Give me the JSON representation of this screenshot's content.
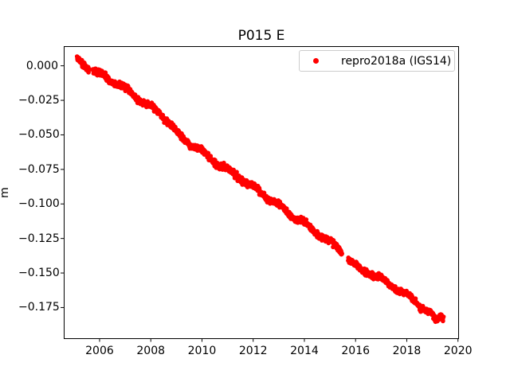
{
  "figure": {
    "background": "#ffffff"
  },
  "chart_data": {
    "type": "scatter",
    "title": "P015 E",
    "xlabel": "",
    "ylabel": "m",
    "grid": false,
    "xlim": [
      2004.6,
      2020.04
    ],
    "ylim": [
      -0.1975,
      0.0145
    ],
    "xticks": [
      {
        "label": "2006",
        "value": 2006
      },
      {
        "label": "2008",
        "value": 2008
      },
      {
        "label": "2010",
        "value": 2010
      },
      {
        "label": "2012",
        "value": 2012
      },
      {
        "label": "2014",
        "value": 2014
      },
      {
        "label": "2016",
        "value": 2016
      },
      {
        "label": "2018",
        "value": 2018
      },
      {
        "label": "2020",
        "value": 2020
      }
    ],
    "yticks": [
      {
        "label": "0.000",
        "value": 0.0
      },
      {
        "label": "−0.025",
        "value": -0.025
      },
      {
        "label": "−0.050",
        "value": -0.05
      },
      {
        "label": "−0.075",
        "value": -0.075
      },
      {
        "label": "−0.100",
        "value": -0.1
      },
      {
        "label": "−0.125",
        "value": -0.125
      },
      {
        "label": "−0.150",
        "value": -0.15
      },
      {
        "label": "−0.175",
        "value": -0.175
      }
    ],
    "legend": {
      "position": "upper right",
      "entries": [
        {
          "label": "repro2018a (IGS14)",
          "marker": "dot",
          "color": "#ff0000"
        }
      ]
    },
    "series": [
      {
        "name": "repro2018a (IGS14)",
        "color": "#ff0000",
        "marker": "dot",
        "marker_radius_px": 2.8,
        "sample_interval_years": 0.0069,
        "noise_sd_m": 0.001,
        "seasonal_amplitude_m": 0.0014,
        "seasonal_peak_phase": 0.05,
        "segments": [
          [
            2005.13,
            2005.59
          ],
          [
            2005.74,
            2015.47
          ],
          [
            2015.72,
            2019.43
          ]
        ],
        "trend_anchors": [
          [
            2005.13,
            0.0045
          ],
          [
            2005.35,
            0.0015
          ],
          [
            2005.59,
            -0.0025
          ],
          [
            2005.74,
            -0.003
          ],
          [
            2006.0,
            -0.006
          ],
          [
            2006.5,
            -0.011
          ],
          [
            2007.0,
            -0.0165
          ],
          [
            2007.5,
            -0.0235
          ],
          [
            2008.0,
            -0.03
          ],
          [
            2008.5,
            -0.0365
          ],
          [
            2009.0,
            -0.048
          ],
          [
            2009.3,
            -0.0535
          ],
          [
            2009.6,
            -0.057
          ],
          [
            2010.0,
            -0.062
          ],
          [
            2010.5,
            -0.0695
          ],
          [
            2011.0,
            -0.075
          ],
          [
            2011.45,
            -0.0805
          ],
          [
            2012.0,
            -0.088
          ],
          [
            2012.7,
            -0.097
          ],
          [
            2013.0,
            -0.1015
          ],
          [
            2013.5,
            -0.108
          ],
          [
            2014.0,
            -0.1145
          ],
          [
            2014.5,
            -0.121
          ],
          [
            2015.0,
            -0.128
          ],
          [
            2015.47,
            -0.134
          ],
          [
            2015.72,
            -0.14
          ],
          [
            2016.1,
            -0.147
          ],
          [
            2016.5,
            -0.1495
          ],
          [
            2017.0,
            -0.1545
          ],
          [
            2017.4,
            -0.159
          ],
          [
            2018.0,
            -0.166
          ],
          [
            2018.5,
            -0.173
          ],
          [
            2019.0,
            -0.1805
          ],
          [
            2019.09,
            -0.1845
          ],
          [
            2019.2,
            -0.184
          ],
          [
            2019.34,
            -0.1805
          ],
          [
            2019.43,
            -0.182
          ]
        ]
      }
    ]
  }
}
